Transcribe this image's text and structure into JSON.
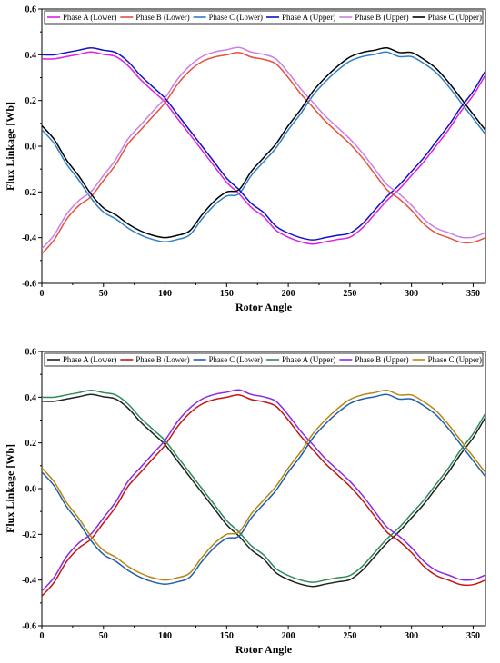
{
  "chart_data": [
    {
      "type": "line",
      "xlabel": "Rotor Angle",
      "ylabel": "Flux Linkage [Wb]",
      "xlim": [
        0,
        360
      ],
      "ylim": [
        -0.6,
        0.6
      ],
      "xticks": [
        "0",
        "50",
        "100",
        "150",
        "200",
        "250",
        "300",
        "350"
      ],
      "yticks": [
        "-0.6",
        "-0.4",
        "-0.2",
        "0.0",
        "0.2",
        "0.4",
        "0.6"
      ],
      "grid": false,
      "legend": "top",
      "series": [
        {
          "name": "Phase A (Lower)",
          "color": "#e01ee0",
          "phase": "A",
          "offset": -0.008
        },
        {
          "name": "Phase B (Lower)",
          "color": "#e8503c",
          "phase": "B",
          "offset": -0.01
        },
        {
          "name": "Phase C (Lower)",
          "color": "#2f7fc8",
          "phase": "C",
          "offset": -0.008
        },
        {
          "name": "Phase A (Upper)",
          "color": "#1010c8",
          "phase": "A",
          "offset": 0.01
        },
        {
          "name": "Phase B (Upper)",
          "color": "#c880e8",
          "phase": "B",
          "offset": 0.012
        },
        {
          "name": "Phase C (Upper)",
          "color": "#000000",
          "phase": "C",
          "offset": 0.01
        }
      ]
    },
    {
      "type": "line",
      "xlabel": "Rotor Angle",
      "ylabel": "Flux Linkage [Wb]",
      "xlim": [
        0,
        360
      ],
      "ylim": [
        -0.6,
        0.6
      ],
      "xticks": [
        "0",
        "50",
        "100",
        "150",
        "200",
        "250",
        "300",
        "350"
      ],
      "yticks": [
        "-0.6",
        "-0.4",
        "-0.2",
        "0.0",
        "0.2",
        "0.4",
        "0.6"
      ],
      "grid": false,
      "legend": "top",
      "series": [
        {
          "name": "Phase A (Lower)",
          "color": "#202020",
          "phase": "A",
          "offset": -0.008
        },
        {
          "name": "Phase B (Lower)",
          "color": "#c81414",
          "phase": "B",
          "offset": -0.01
        },
        {
          "name": "Phase C (Lower)",
          "color": "#1f5fb0",
          "phase": "C",
          "offset": -0.008
        },
        {
          "name": "Phase A (Upper)",
          "color": "#2e8b57",
          "phase": "A",
          "offset": 0.01
        },
        {
          "name": "Phase B (Upper)",
          "color": "#8a2be2",
          "phase": "B",
          "offset": 0.012
        },
        {
          "name": "Phase C (Upper)",
          "color": "#b8860b",
          "phase": "C",
          "offset": 0.01
        }
      ]
    }
  ],
  "phase_curves": {
    "x": [
      0,
      10,
      20,
      30,
      40,
      50,
      60,
      70,
      80,
      90,
      100,
      110,
      120,
      130,
      140,
      150,
      160,
      170,
      180,
      190,
      200,
      210,
      220,
      230,
      240,
      250,
      260,
      270,
      280,
      290,
      300,
      310,
      320,
      330,
      340,
      350,
      360
    ],
    "A": [
      0.39,
      0.39,
      0.4,
      0.41,
      0.42,
      0.41,
      0.4,
      0.36,
      0.3,
      0.25,
      0.2,
      0.13,
      0.06,
      -0.01,
      -0.08,
      -0.15,
      -0.2,
      -0.26,
      -0.3,
      -0.36,
      -0.39,
      -0.41,
      -0.42,
      -0.41,
      -0.4,
      -0.39,
      -0.35,
      -0.29,
      -0.23,
      -0.18,
      -0.12,
      -0.06,
      0.01,
      0.08,
      0.16,
      0.23,
      0.32
    ],
    "B": [
      -0.46,
      -0.4,
      -0.31,
      -0.25,
      -0.21,
      -0.14,
      -0.07,
      0.02,
      0.08,
      0.14,
      0.2,
      0.28,
      0.34,
      0.38,
      0.4,
      0.41,
      0.42,
      0.4,
      0.39,
      0.37,
      0.31,
      0.24,
      0.18,
      0.12,
      0.07,
      0.02,
      -0.04,
      -0.11,
      -0.18,
      -0.22,
      -0.27,
      -0.33,
      -0.37,
      -0.39,
      -0.41,
      -0.41,
      -0.39
    ],
    "C": [
      0.08,
      0.02,
      -0.07,
      -0.14,
      -0.22,
      -0.28,
      -0.31,
      -0.35,
      -0.38,
      -0.4,
      -0.41,
      -0.4,
      -0.38,
      -0.31,
      -0.25,
      -0.21,
      -0.2,
      -0.12,
      -0.06,
      0.0,
      0.08,
      0.15,
      0.23,
      0.29,
      0.34,
      0.38,
      0.4,
      0.41,
      0.42,
      0.4,
      0.4,
      0.37,
      0.33,
      0.27,
      0.2,
      0.13,
      0.06
    ]
  }
}
